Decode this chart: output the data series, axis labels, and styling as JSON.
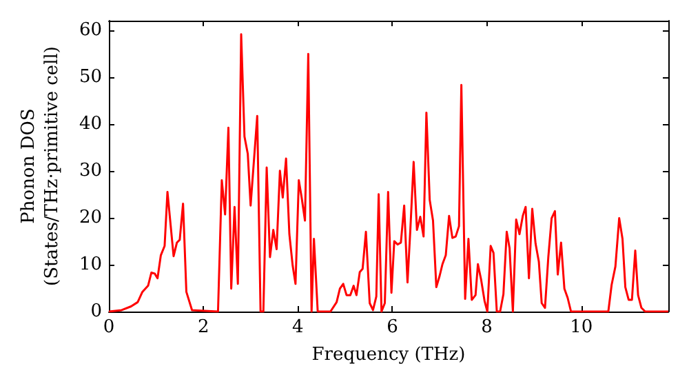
{
  "chart_data": {
    "type": "line",
    "xlabel": "Frequency (THz)",
    "ylabel": "Phonon DOS\n(States/THz·primitive cell)",
    "xlim": [
      0,
      11.84
    ],
    "xticks": [
      0,
      2,
      4,
      6,
      8,
      10
    ],
    "ylim": [
      0,
      62
    ],
    "yticks": [
      0,
      10,
      20,
      30,
      40,
      50,
      60
    ],
    "grid": false,
    "marker": "none",
    "line_style": "solid",
    "series": [
      {
        "color": "#ff0000",
        "x": [
          0,
          0.27,
          0.47,
          0.61,
          0.71,
          0.83,
          0.9,
          0.97,
          1.03,
          1.1,
          1.18,
          1.24,
          1.37,
          1.44,
          1.5,
          1.57,
          1.64,
          1.76,
          2.31,
          2.39,
          2.46,
          2.53,
          2.59,
          2.66,
          2.73,
          2.8,
          2.87,
          2.94,
          3.0,
          3.14,
          3.21,
          3.27,
          3.34,
          3.41,
          3.48,
          3.55,
          3.62,
          3.68,
          3.75,
          3.82,
          3.89,
          3.95,
          4.02,
          4.08,
          4.15,
          4.22,
          4.29,
          4.34,
          4.42,
          4.69,
          4.82,
          4.89,
          4.96,
          5.03,
          5.11,
          5.18,
          5.24,
          5.31,
          5.37,
          5.44,
          5.52,
          5.59,
          5.66,
          5.71,
          5.77,
          5.84,
          5.91,
          5.98,
          6.04,
          6.11,
          6.18,
          6.25,
          6.32,
          6.38,
          6.45,
          6.52,
          6.59,
          6.66,
          6.72,
          6.79,
          6.86,
          6.93,
          7.0,
          7.06,
          7.13,
          7.2,
          7.27,
          7.34,
          7.41,
          7.46,
          7.54,
          7.61,
          7.68,
          7.76,
          7.81,
          7.88,
          7.95,
          8.01,
          8.08,
          8.14,
          8.21,
          8.28,
          8.35,
          8.42,
          8.48,
          8.55,
          8.62,
          8.69,
          8.76,
          8.82,
          8.89,
          8.96,
          9.03,
          9.1,
          9.16,
          9.23,
          9.3,
          9.37,
          9.44,
          9.5,
          9.57,
          9.64,
          9.71,
          9.78,
          10.57,
          10.64,
          10.72,
          10.8,
          10.87,
          10.93,
          11.0,
          11.07,
          11.14,
          11.2,
          11.27,
          11.35,
          11.84
        ],
        "values": [
          0,
          0.3,
          1.1,
          2,
          4.2,
          5.5,
          8.3,
          8.1,
          7.1,
          12,
          14,
          25.5,
          11.8,
          14.7,
          15.3,
          23,
          4.2,
          0.3,
          0,
          28,
          20.7,
          39.2,
          4.9,
          22.3,
          5.9,
          59.1,
          37.3,
          33.6,
          22.6,
          41.7,
          0,
          0,
          30.7,
          11.6,
          17.4,
          13.3,
          30,
          24.3,
          32.6,
          16.5,
          9.8,
          5.9,
          28,
          24.3,
          19.4,
          54.9,
          0,
          15.5,
          0,
          0,
          2,
          4.9,
          5.9,
          3.5,
          3.5,
          5.5,
          3.5,
          8.4,
          9.1,
          17,
          1.8,
          0.3,
          3.2,
          25,
          0,
          1.8,
          25.5,
          4,
          15,
          14.3,
          14.7,
          22.6,
          6.2,
          17.4,
          31.9,
          17.4,
          20.2,
          16,
          42.4,
          23.8,
          19.4,
          5.2,
          7.6,
          10.1,
          12,
          20.4,
          15.7,
          16,
          18.2,
          48.3,
          2.7,
          15.5,
          2.5,
          3.5,
          10.1,
          6.7,
          2.3,
          0,
          14,
          12.5,
          0,
          0,
          3.7,
          17,
          13.5,
          0,
          19.6,
          16.5,
          20.4,
          22.3,
          7.1,
          21.9,
          14.5,
          10.6,
          1.8,
          0.8,
          11.6,
          19.9,
          21.4,
          7.9,
          14.7,
          4.9,
          2.9,
          0,
          0,
          5.7,
          9.6,
          19.9,
          15.5,
          5.2,
          2.5,
          2.5,
          13,
          3.5,
          0.8,
          0,
          0
        ]
      }
    ]
  }
}
